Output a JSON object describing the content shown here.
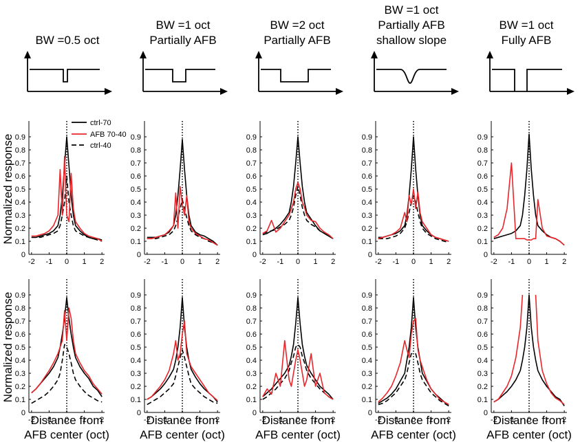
{
  "figure": {
    "ylabel": "Normalized response",
    "xlabel_line1": "Distance from",
    "xlabel_line2": "AFB center (oct)",
    "legend": [
      "ctrl-70",
      "AFB 70-40",
      "ctrl-40"
    ],
    "colors": {
      "ctrl70": "#000000",
      "afb": "#e8252a",
      "ctrl40": "#000000",
      "axis": "#000000"
    }
  },
  "conditions": [
    {
      "title": [
        "BW =0.5 oct"
      ],
      "notch": "narrow"
    },
    {
      "title": [
        "BW =1 oct",
        "Partially AFB"
      ],
      "notch": "medium"
    },
    {
      "title": [
        "BW =2 oct",
        "Partially AFB"
      ],
      "notch": "wide"
    },
    {
      "title": [
        "BW =1 oct",
        "Partially AFB",
        "shallow slope"
      ],
      "notch": "shallow"
    },
    {
      "title": [
        "BW =1 oct",
        "Fully AFB"
      ],
      "notch": "full"
    }
  ],
  "chart_data": {
    "type": "line",
    "xlabel": "Distance from AFB center (oct)",
    "ylabel": "Normalized response",
    "xlim": [
      -2.15,
      2.15
    ],
    "ylim": [
      0,
      1
    ],
    "xticks": [
      -2,
      -1,
      0,
      1,
      2
    ],
    "yticks": [
      0,
      0.1,
      0.2,
      0.3,
      0.4,
      0.5,
      0.6,
      0.7,
      0.8,
      0.9
    ],
    "x": [
      -2.0,
      -1.75,
      -1.5,
      -1.25,
      -1.0,
      -0.75,
      -0.5,
      -0.375,
      -0.25,
      -0.125,
      0.0,
      0.125,
      0.25,
      0.375,
      0.5,
      0.75,
      1.0,
      1.25,
      1.5,
      1.75,
      2.0
    ],
    "rows": [
      [
        {
          "ctrl70": [
            0.13,
            0.13,
            0.14,
            0.15,
            0.16,
            0.18,
            0.22,
            0.3,
            0.45,
            0.68,
            0.9,
            0.68,
            0.45,
            0.3,
            0.22,
            0.18,
            0.15,
            0.13,
            0.12,
            0.12,
            0.11
          ],
          "afb": [
            0.14,
            0.14,
            0.15,
            0.16,
            0.18,
            0.22,
            0.3,
            0.65,
            0.3,
            0.75,
            0.3,
            0.25,
            0.62,
            0.35,
            0.25,
            0.2,
            0.16,
            0.14,
            0.13,
            0.12,
            0.1
          ],
          "ctrl40": [
            0.13,
            0.13,
            0.13,
            0.14,
            0.15,
            0.16,
            0.18,
            0.22,
            0.3,
            0.4,
            0.6,
            0.4,
            0.3,
            0.22,
            0.18,
            0.16,
            0.14,
            0.13,
            0.12,
            0.11,
            0.1
          ]
        },
        {
          "ctrl70": [
            0.13,
            0.13,
            0.13,
            0.14,
            0.15,
            0.17,
            0.22,
            0.3,
            0.45,
            0.65,
            0.88,
            0.65,
            0.45,
            0.3,
            0.22,
            0.17,
            0.15,
            0.14,
            0.12,
            0.1,
            0.07
          ],
          "afb": [
            0.12,
            0.12,
            0.13,
            0.14,
            0.15,
            0.18,
            0.22,
            0.47,
            0.2,
            0.52,
            0.38,
            0.3,
            0.45,
            0.25,
            0.2,
            0.16,
            0.14,
            0.12,
            0.11,
            0.09,
            0.07
          ],
          "ctrl40": [
            0.12,
            0.12,
            0.12,
            0.13,
            0.14,
            0.15,
            0.18,
            0.22,
            0.28,
            0.35,
            0.42,
            0.35,
            0.28,
            0.22,
            0.18,
            0.15,
            0.13,
            0.12,
            0.1,
            0.09,
            0.07
          ]
        },
        {
          "ctrl70": [
            0.15,
            0.16,
            0.18,
            0.2,
            0.23,
            0.27,
            0.32,
            0.4,
            0.52,
            0.7,
            0.9,
            0.7,
            0.52,
            0.4,
            0.32,
            0.27,
            0.22,
            0.18,
            0.16,
            0.14,
            0.12
          ],
          "afb": [
            0.16,
            0.18,
            0.26,
            0.17,
            0.2,
            0.25,
            0.3,
            0.35,
            0.4,
            0.5,
            0.55,
            0.5,
            0.4,
            0.36,
            0.3,
            0.26,
            0.25,
            0.2,
            0.17,
            0.15,
            0.12
          ],
          "ctrl40": [
            0.16,
            0.17,
            0.18,
            0.19,
            0.21,
            0.23,
            0.26,
            0.3,
            0.36,
            0.45,
            0.52,
            0.45,
            0.36,
            0.3,
            0.26,
            0.23,
            0.21,
            0.18,
            0.16,
            0.14,
            0.12
          ]
        },
        {
          "ctrl70": [
            0.13,
            0.13,
            0.14,
            0.15,
            0.16,
            0.18,
            0.22,
            0.3,
            0.45,
            0.65,
            0.9,
            0.65,
            0.45,
            0.3,
            0.22,
            0.18,
            0.15,
            0.13,
            0.12,
            0.11,
            0.1
          ],
          "afb": [
            0.12,
            0.13,
            0.14,
            0.15,
            0.17,
            0.2,
            0.32,
            0.25,
            0.45,
            0.38,
            0.5,
            0.35,
            0.48,
            0.32,
            0.25,
            0.2,
            0.15,
            0.13,
            0.12,
            0.11,
            0.1
          ],
          "ctrl40": [
            0.12,
            0.12,
            0.12,
            0.13,
            0.14,
            0.16,
            0.2,
            0.25,
            0.32,
            0.4,
            0.45,
            0.4,
            0.32,
            0.25,
            0.2,
            0.16,
            0.14,
            0.12,
            0.11,
            0.1,
            0.09
          ]
        },
        {
          "ctrl70": [
            0.12,
            0.13,
            0.14,
            0.15,
            0.16,
            0.18,
            0.22,
            0.3,
            0.45,
            0.65,
            0.92,
            0.65,
            0.45,
            0.3,
            0.22,
            0.18,
            0.15,
            0.13,
            0.12,
            0.1,
            0.07
          ],
          "afb": [
            0.13,
            0.15,
            0.2,
            0.35,
            0.7,
            0.12,
            0.12,
            0.12,
            0.12,
            0.11,
            0.11,
            0.11,
            0.12,
            0.12,
            0.42,
            0.2,
            0.14,
            0.13,
            0.12,
            0.1,
            0.07
          ],
          "ctrl40": []
        }
      ],
      [
        {
          "ctrl70": [
            0.15,
            0.18,
            0.22,
            0.26,
            0.3,
            0.35,
            0.42,
            0.5,
            0.6,
            0.72,
            0.88,
            0.72,
            0.6,
            0.5,
            0.42,
            0.35,
            0.3,
            0.26,
            0.2,
            0.17,
            0.12
          ],
          "afb": [
            0.15,
            0.18,
            0.22,
            0.27,
            0.32,
            0.38,
            0.45,
            0.5,
            0.55,
            0.78,
            0.55,
            0.8,
            0.72,
            0.55,
            0.45,
            0.38,
            0.32,
            0.28,
            0.22,
            0.18,
            0.14
          ],
          "ctrl40": [
            0.07,
            0.09,
            0.11,
            0.13,
            0.16,
            0.2,
            0.25,
            0.3,
            0.4,
            0.52,
            0.5,
            0.45,
            0.38,
            0.3,
            0.25,
            0.2,
            0.16,
            0.13,
            0.11,
            0.09,
            0.08
          ]
        },
        {
          "ctrl70": [
            0.1,
            0.12,
            0.15,
            0.18,
            0.22,
            0.27,
            0.33,
            0.4,
            0.5,
            0.65,
            0.88,
            0.65,
            0.5,
            0.4,
            0.33,
            0.27,
            0.22,
            0.18,
            0.15,
            0.12,
            0.08
          ],
          "afb": [
            0.1,
            0.12,
            0.16,
            0.2,
            0.25,
            0.32,
            0.45,
            0.55,
            0.4,
            0.45,
            0.6,
            0.7,
            0.45,
            0.4,
            0.35,
            0.3,
            0.25,
            0.2,
            0.15,
            0.12,
            0.09
          ],
          "ctrl40": [
            0.06,
            0.08,
            0.1,
            0.12,
            0.15,
            0.18,
            0.22,
            0.28,
            0.35,
            0.42,
            0.48,
            0.42,
            0.35,
            0.28,
            0.22,
            0.18,
            0.15,
            0.12,
            0.1,
            0.08,
            0.07
          ]
        },
        {
          "ctrl70": [
            0.12,
            0.15,
            0.18,
            0.22,
            0.26,
            0.3,
            0.36,
            0.43,
            0.52,
            0.68,
            0.88,
            0.68,
            0.52,
            0.43,
            0.36,
            0.3,
            0.25,
            0.2,
            0.17,
            0.14,
            0.1
          ],
          "afb": [
            0.12,
            0.18,
            0.14,
            0.3,
            0.2,
            0.55,
            0.25,
            0.2,
            0.3,
            0.4,
            0.48,
            0.4,
            0.3,
            0.2,
            0.25,
            0.45,
            0.2,
            0.3,
            0.15,
            0.12,
            0.1
          ],
          "ctrl40": [
            0.1,
            0.12,
            0.15,
            0.18,
            0.22,
            0.26,
            0.32,
            0.38,
            0.43,
            0.5,
            0.52,
            0.5,
            0.43,
            0.38,
            0.32,
            0.26,
            0.22,
            0.18,
            0.15,
            0.12,
            0.1
          ]
        },
        {
          "ctrl70": [
            0.07,
            0.09,
            0.11,
            0.14,
            0.18,
            0.24,
            0.3,
            0.4,
            0.5,
            0.65,
            0.88,
            0.65,
            0.5,
            0.4,
            0.3,
            0.24,
            0.18,
            0.14,
            0.11,
            0.08,
            0.06
          ],
          "afb": [
            0.08,
            0.11,
            0.15,
            0.2,
            0.28,
            0.38,
            0.55,
            0.48,
            0.42,
            0.6,
            0.7,
            0.72,
            0.48,
            0.4,
            0.35,
            0.25,
            0.18,
            0.14,
            0.1,
            0.08,
            0.06
          ],
          "ctrl40": [
            0.06,
            0.07,
            0.09,
            0.12,
            0.15,
            0.2,
            0.25,
            0.3,
            0.38,
            0.45,
            0.45,
            0.45,
            0.38,
            0.3,
            0.25,
            0.2,
            0.15,
            0.12,
            0.09,
            0.07,
            0.05
          ]
        },
        {
          "ctrl70": [
            0.08,
            0.1,
            0.13,
            0.16,
            0.2,
            0.25,
            0.32,
            0.4,
            0.5,
            0.65,
            0.9,
            0.65,
            0.5,
            0.4,
            0.32,
            0.25,
            0.2,
            0.16,
            0.12,
            0.1,
            0.05
          ],
          "afb": [
            0.08,
            0.1,
            0.15,
            0.2,
            0.28,
            0.42,
            0.65,
            0.9,
            null,
            null,
            null,
            null,
            null,
            0.9,
            0.55,
            0.32,
            0.22,
            0.15,
            0.11,
            0.09,
            0.06
          ],
          "ctrl40": []
        }
      ]
    ]
  }
}
